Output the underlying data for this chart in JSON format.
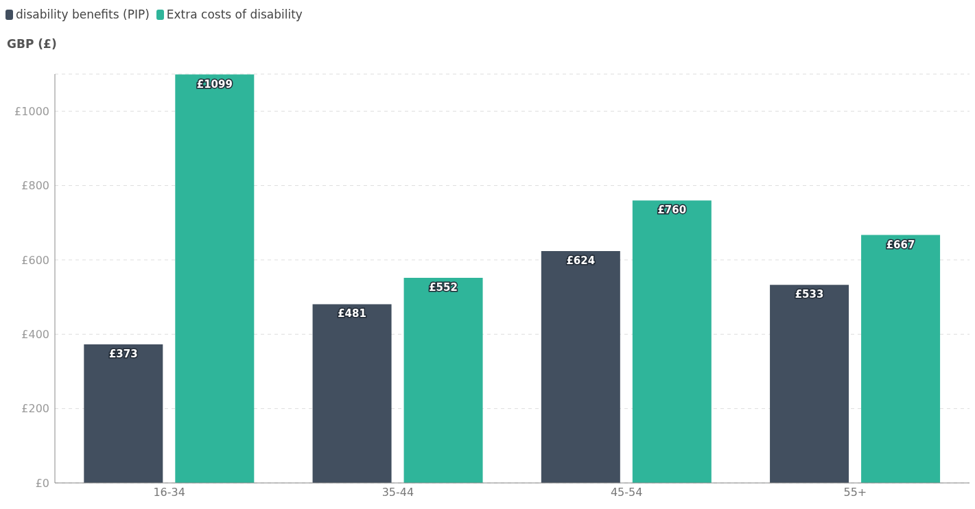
{
  "chart_data": {
    "type": "bar",
    "ylabel": "GBP (£)",
    "categories": [
      "16-34",
      "35-44",
      "45-54",
      "55+"
    ],
    "series": [
      {
        "name": "disability benefits (PIP)",
        "color": "#424f5f",
        "values": [
          373,
          481,
          624,
          533
        ],
        "value_labels": [
          "£373",
          "£481",
          "£624",
          "£533"
        ]
      },
      {
        "name": "Extra costs of disability",
        "color": "#2fb59a",
        "values": [
          1099,
          552,
          760,
          667
        ],
        "value_labels": [
          "£1099",
          "£552",
          "£760",
          "£667"
        ]
      }
    ],
    "ylim": [
      0,
      1100
    ],
    "yticks": [
      {
        "value": 0,
        "label": "£0"
      },
      {
        "value": 200,
        "label": "£200"
      },
      {
        "value": 400,
        "label": "£400"
      },
      {
        "value": 600,
        "label": "£600"
      },
      {
        "value": 800,
        "label": "£800"
      },
      {
        "value": 1000,
        "label": "£1000"
      }
    ],
    "grid": "y",
    "legend": "top left"
  }
}
